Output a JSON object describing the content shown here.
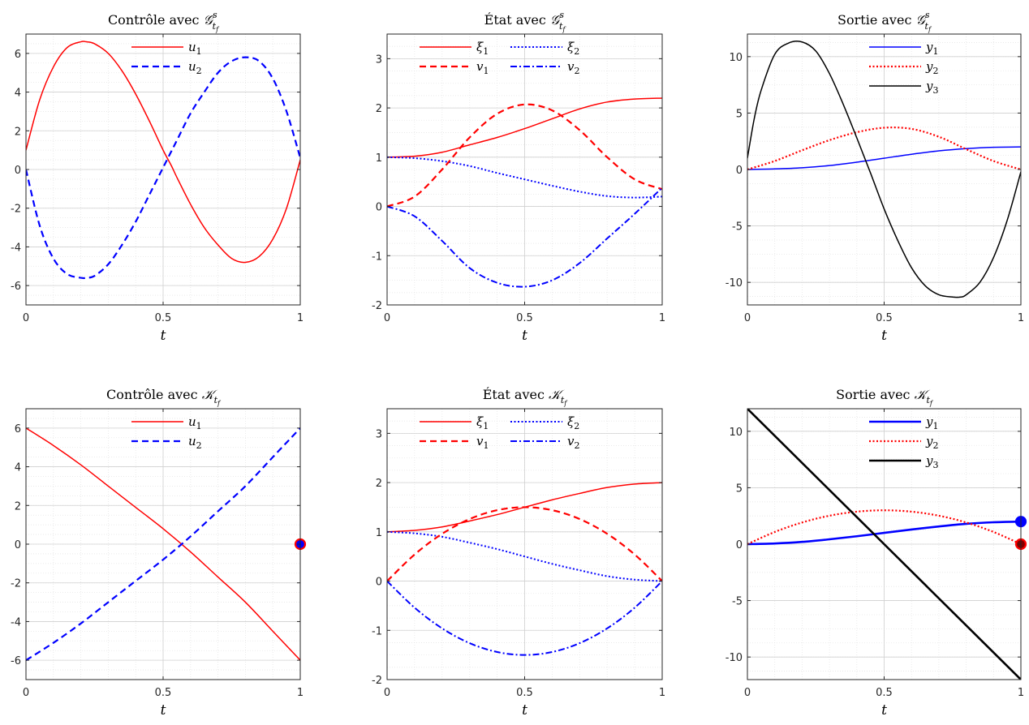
{
  "chart_data": [
    {
      "type": "line",
      "title": "Contrôle avec G^s_{t_f}",
      "title_main": "Contrôle avec ",
      "title_symbol": "𝒢",
      "title_sup": "s",
      "title_sub": "t",
      "title_subsub": "f",
      "xlabel": "t",
      "xlim": [
        0,
        1
      ],
      "ylim": [
        -7,
        7
      ],
      "xticks": [
        0,
        0.5,
        1
      ],
      "xtick_labels": [
        "0",
        "0.5",
        "1"
      ],
      "yticks": [
        -6,
        -4,
        -2,
        0,
        2,
        4,
        6
      ],
      "ytick_labels": [
        "-6",
        "-4",
        "-2",
        "0",
        "2",
        "4",
        "6"
      ],
      "grid": true,
      "minor_grid": true,
      "legend_position": "top",
      "legend_columns": 1,
      "series": [
        {
          "name": "u1",
          "label_base": "u",
          "label_sub": "1",
          "color": "#ff0000",
          "dash": "solid",
          "width": 1.5,
          "x": [
            0,
            0.05,
            0.1,
            0.15,
            0.2,
            0.22,
            0.25,
            0.3,
            0.35,
            0.4,
            0.45,
            0.5,
            0.53,
            0.55,
            0.6,
            0.65,
            0.7,
            0.75,
            0.8,
            0.85,
            0.9,
            0.95,
            1.0
          ],
          "y": [
            1.0,
            3.6,
            5.3,
            6.3,
            6.6,
            6.6,
            6.5,
            6.0,
            5.1,
            3.9,
            2.5,
            1.0,
            0.2,
            -0.4,
            -1.8,
            -3.0,
            -3.9,
            -4.6,
            -4.8,
            -4.5,
            -3.6,
            -2.0,
            0.5
          ]
        },
        {
          "name": "u2",
          "label_base": "u",
          "label_sub": "2",
          "color": "#0000ff",
          "dash": "dashed",
          "width": 2.2,
          "x": [
            0,
            0.05,
            0.1,
            0.15,
            0.2,
            0.22,
            0.25,
            0.3,
            0.35,
            0.4,
            0.45,
            0.5,
            0.55,
            0.6,
            0.65,
            0.7,
            0.75,
            0.8,
            0.85,
            0.9,
            0.95,
            1.0
          ],
          "y": [
            0,
            -2.9,
            -4.6,
            -5.4,
            -5.6,
            -5.6,
            -5.5,
            -4.9,
            -3.9,
            -2.7,
            -1.3,
            0.1,
            1.5,
            2.9,
            4.0,
            5.0,
            5.6,
            5.8,
            5.6,
            4.7,
            3.0,
            0.6
          ]
        }
      ]
    },
    {
      "type": "line",
      "title": "État avec G^s_{t_f}",
      "title_main": "État avec ",
      "title_symbol": "𝒢",
      "title_sup": "s",
      "title_sub": "t",
      "title_subsub": "f",
      "xlabel": "t",
      "xlim": [
        0,
        1
      ],
      "ylim": [
        -2,
        3.5
      ],
      "xticks": [
        0,
        0.5,
        1
      ],
      "xtick_labels": [
        "0",
        "0.5",
        "1"
      ],
      "yticks": [
        -2,
        -1,
        0,
        1,
        2,
        3
      ],
      "ytick_labels": [
        "-2",
        "-1",
        "0",
        "1",
        "2",
        "3"
      ],
      "grid": true,
      "minor_grid": true,
      "legend_position": "top",
      "legend_columns": 2,
      "series": [
        {
          "name": "ξ1",
          "label_base": "ξ",
          "label_sub": "1",
          "color": "#ff0000",
          "dash": "solid",
          "width": 1.5,
          "x": [
            0,
            0.1,
            0.2,
            0.3,
            0.4,
            0.5,
            0.6,
            0.7,
            0.8,
            0.9,
            1.0
          ],
          "y": [
            1.0,
            1.02,
            1.1,
            1.25,
            1.4,
            1.58,
            1.78,
            1.98,
            2.12,
            2.18,
            2.2
          ]
        },
        {
          "name": "ξ2",
          "label_base": "ξ",
          "label_sub": "2",
          "color": "#0000ff",
          "dash": "dotted",
          "width": 2,
          "x": [
            0,
            0.1,
            0.2,
            0.3,
            0.4,
            0.5,
            0.6,
            0.7,
            0.8,
            0.9,
            1.0
          ],
          "y": [
            1.0,
            0.98,
            0.92,
            0.82,
            0.68,
            0.55,
            0.42,
            0.3,
            0.21,
            0.18,
            0.2
          ]
        },
        {
          "name": "v1",
          "label_base": "v",
          "label_sub": "1",
          "color": "#ff0000",
          "dash": "dashed",
          "width": 2.2,
          "x": [
            0,
            0.1,
            0.2,
            0.3,
            0.4,
            0.5,
            0.6,
            0.7,
            0.8,
            0.9,
            1.0
          ],
          "y": [
            0,
            0.2,
            0.75,
            1.4,
            1.88,
            2.07,
            1.95,
            1.55,
            1.0,
            0.55,
            0.35
          ]
        },
        {
          "name": "v2",
          "label_base": "v",
          "label_sub": "2",
          "color": "#0000ff",
          "dash": "dashdot",
          "width": 2,
          "x": [
            0,
            0.1,
            0.2,
            0.3,
            0.4,
            0.5,
            0.6,
            0.7,
            0.8,
            0.9,
            1.0
          ],
          "y": [
            0,
            -0.2,
            -0.7,
            -1.25,
            -1.55,
            -1.63,
            -1.5,
            -1.15,
            -0.65,
            -0.15,
            0.38
          ]
        }
      ]
    },
    {
      "type": "line",
      "title": "Sortie avec G^s_{t_f}",
      "title_main": "Sortie avec ",
      "title_symbol": "𝒢",
      "title_sup": "s",
      "title_sub": "t",
      "title_subsub": "f",
      "xlabel": "t",
      "xlim": [
        0,
        1
      ],
      "ylim": [
        -12,
        12
      ],
      "xticks": [
        0,
        0.5,
        1
      ],
      "xtick_labels": [
        "0",
        "0.5",
        "1"
      ],
      "yticks": [
        -10,
        -5,
        0,
        5,
        10
      ],
      "ytick_labels": [
        "-10",
        "-5",
        "0",
        "5",
        "10"
      ],
      "grid": true,
      "minor_grid": true,
      "legend_position": "top-right",
      "legend_columns": 1,
      "series": [
        {
          "name": "y1",
          "label_base": "y",
          "label_sub": "1",
          "color": "#0000ff",
          "dash": "solid",
          "width": 1.5,
          "x": [
            0,
            0.1,
            0.2,
            0.3,
            0.4,
            0.5,
            0.6,
            0.7,
            0.8,
            0.9,
            1.0
          ],
          "y": [
            0,
            0.05,
            0.15,
            0.35,
            0.65,
            1.0,
            1.35,
            1.65,
            1.85,
            1.97,
            2.0
          ]
        },
        {
          "name": "y2",
          "label_base": "y",
          "label_sub": "2",
          "color": "#ff0000",
          "dash": "dotted",
          "width": 2.2,
          "x": [
            0,
            0.1,
            0.2,
            0.3,
            0.4,
            0.5,
            0.6,
            0.7,
            0.8,
            0.9,
            1.0
          ],
          "y": [
            0,
            0.75,
            1.7,
            2.6,
            3.3,
            3.7,
            3.6,
            2.9,
            1.8,
            0.75,
            0
          ]
        },
        {
          "name": "y3",
          "label_base": "y",
          "label_sub": "3",
          "color": "#000000",
          "dash": "solid",
          "width": 1.5,
          "x": [
            0,
            0.025,
            0.05,
            0.1,
            0.15,
            0.2,
            0.25,
            0.3,
            0.35,
            0.4,
            0.45,
            0.5,
            0.55,
            0.6,
            0.65,
            0.7,
            0.75,
            0.78,
            0.8,
            0.85,
            0.9,
            0.95,
            1.0
          ],
          "y": [
            1.0,
            4.5,
            7.0,
            10.2,
            11.2,
            11.3,
            10.5,
            8.5,
            5.8,
            2.8,
            -0.3,
            -3.5,
            -6.3,
            -8.7,
            -10.3,
            -11.1,
            -11.3,
            -11.3,
            -11.1,
            -10.0,
            -7.8,
            -4.5,
            -0.2
          ]
        }
      ]
    },
    {
      "type": "line",
      "title": "Contrôle avec K_{t_f}",
      "title_main": "Contrôle avec ",
      "title_symbol": "𝒦",
      "title_sup": "",
      "title_sub": "t",
      "title_subsub": "f",
      "xlabel": "t",
      "xlim": [
        0,
        1
      ],
      "ylim": [
        -7,
        7
      ],
      "xticks": [
        0,
        0.5,
        1
      ],
      "xtick_labels": [
        "0",
        "0.5",
        "1"
      ],
      "yticks": [
        -6,
        -4,
        -2,
        0,
        2,
        4,
        6
      ],
      "ytick_labels": [
        "-6",
        "-4",
        "-2",
        "0",
        "2",
        "4",
        "6"
      ],
      "grid": true,
      "minor_grid": true,
      "legend_position": "top",
      "legend_columns": 1,
      "series": [
        {
          "name": "u1",
          "label_base": "u",
          "label_sub": "1",
          "color": "#ff0000",
          "dash": "solid",
          "width": 1.5,
          "x": [
            0,
            0.1,
            0.2,
            0.3,
            0.4,
            0.5,
            0.6,
            0.7,
            0.8,
            0.9,
            1.0
          ],
          "y": [
            6.0,
            5.1,
            4.1,
            3.0,
            1.9,
            0.8,
            -0.4,
            -1.7,
            -3.0,
            -4.5,
            -6.0
          ]
        },
        {
          "name": "u2",
          "label_base": "u",
          "label_sub": "2",
          "color": "#0000ff",
          "dash": "dashed",
          "width": 2.2,
          "x": [
            0,
            0.1,
            0.2,
            0.3,
            0.4,
            0.5,
            0.6,
            0.7,
            0.8,
            0.9,
            1.0
          ],
          "y": [
            -6.0,
            -5.1,
            -4.1,
            -3.0,
            -1.9,
            -0.8,
            0.4,
            1.7,
            3.0,
            4.5,
            6.0
          ]
        }
      ],
      "markers": [
        {
          "x": 1.0,
          "y": 0,
          "color": "#0000ff",
          "edge": "#ff0000"
        }
      ]
    },
    {
      "type": "line",
      "title": "État avec K_{t_f}",
      "title_main": "État avec ",
      "title_symbol": "𝒦",
      "title_sup": "",
      "title_sub": "t",
      "title_subsub": "f",
      "xlabel": "t",
      "xlim": [
        0,
        1
      ],
      "ylim": [
        -2,
        3.5
      ],
      "xticks": [
        0,
        0.5,
        1
      ],
      "xtick_labels": [
        "0",
        "0.5",
        "1"
      ],
      "yticks": [
        -2,
        -1,
        0,
        1,
        2,
        3
      ],
      "ytick_labels": [
        "-2",
        "-1",
        "0",
        "1",
        "2",
        "3"
      ],
      "grid": true,
      "minor_grid": true,
      "legend_position": "top",
      "legend_columns": 2,
      "series": [
        {
          "name": "ξ1",
          "label_base": "ξ",
          "label_sub": "1",
          "color": "#ff0000",
          "dash": "solid",
          "width": 1.5,
          "x": [
            0,
            0.1,
            0.2,
            0.3,
            0.4,
            0.5,
            0.6,
            0.7,
            0.8,
            0.9,
            1.0
          ],
          "y": [
            1.0,
            1.03,
            1.1,
            1.22,
            1.35,
            1.5,
            1.65,
            1.78,
            1.9,
            1.97,
            2.0
          ]
        },
        {
          "name": "ξ2",
          "label_base": "ξ",
          "label_sub": "2",
          "color": "#0000ff",
          "dash": "dotted",
          "width": 2,
          "x": [
            0,
            0.1,
            0.2,
            0.3,
            0.4,
            0.5,
            0.6,
            0.7,
            0.8,
            0.9,
            1.0
          ],
          "y": [
            1.0,
            0.97,
            0.9,
            0.78,
            0.65,
            0.5,
            0.35,
            0.22,
            0.1,
            0.03,
            0
          ]
        },
        {
          "name": "v1",
          "label_base": "v",
          "label_sub": "1",
          "color": "#ff0000",
          "dash": "dashed",
          "width": 2.2,
          "x": [
            0,
            0.1,
            0.2,
            0.3,
            0.4,
            0.5,
            0.6,
            0.7,
            0.8,
            0.9,
            1.0
          ],
          "y": [
            0,
            0.54,
            0.96,
            1.26,
            1.44,
            1.5,
            1.44,
            1.26,
            0.96,
            0.54,
            0
          ]
        },
        {
          "name": "v2",
          "label_base": "v",
          "label_sub": "2",
          "color": "#0000ff",
          "dash": "dashdot",
          "width": 2,
          "x": [
            0,
            0.1,
            0.2,
            0.3,
            0.4,
            0.5,
            0.6,
            0.7,
            0.8,
            0.9,
            1.0
          ],
          "y": [
            0,
            -0.54,
            -0.96,
            -1.26,
            -1.44,
            -1.5,
            -1.44,
            -1.26,
            -0.96,
            -0.54,
            0
          ]
        }
      ]
    },
    {
      "type": "line",
      "title": "Sortie avec K_{t_f}",
      "title_main": "Sortie avec ",
      "title_symbol": "𝒦",
      "title_sup": "",
      "title_sub": "t",
      "title_subsub": "f",
      "xlabel": "t",
      "xlim": [
        0,
        1
      ],
      "ylim": [
        -12,
        12
      ],
      "xticks": [
        0,
        0.5,
        1
      ],
      "xtick_labels": [
        "0",
        "0.5",
        "1"
      ],
      "yticks": [
        -10,
        -5,
        0,
        5,
        10
      ],
      "ytick_labels": [
        "-10",
        "-5",
        "0",
        "5",
        "10"
      ],
      "grid": true,
      "minor_grid": true,
      "legend_position": "top-right",
      "legend_columns": 1,
      "series": [
        {
          "name": "y1",
          "label_base": "y",
          "label_sub": "1",
          "color": "#0000ff",
          "dash": "solid",
          "width": 2.6,
          "x": [
            0,
            0.1,
            0.2,
            0.3,
            0.4,
            0.5,
            0.6,
            0.7,
            0.8,
            0.9,
            1.0
          ],
          "y": [
            0,
            0.06,
            0.2,
            0.43,
            0.7,
            1.0,
            1.3,
            1.57,
            1.8,
            1.94,
            2.0
          ]
        },
        {
          "name": "y2",
          "label_base": "y",
          "label_sub": "2",
          "color": "#ff0000",
          "dash": "dotted",
          "width": 2.2,
          "x": [
            0,
            0.1,
            0.2,
            0.3,
            0.4,
            0.5,
            0.6,
            0.7,
            0.8,
            0.9,
            1.0
          ],
          "y": [
            0,
            1.08,
            1.92,
            2.52,
            2.88,
            3.0,
            2.88,
            2.52,
            1.92,
            1.08,
            0
          ]
        },
        {
          "name": "y3",
          "label_base": "y",
          "label_sub": "3",
          "color": "#000000",
          "dash": "solid",
          "width": 2.6,
          "x": [
            0,
            1.0
          ],
          "y": [
            12,
            -12
          ]
        }
      ],
      "markers": [
        {
          "x": 1.0,
          "y": 2.0,
          "color": "#0000ff",
          "edge": "#0000ff"
        },
        {
          "x": 1.0,
          "y": 0,
          "color": "#ff0000",
          "edge": "#ff0000",
          "inner": "#800000"
        }
      ]
    }
  ]
}
